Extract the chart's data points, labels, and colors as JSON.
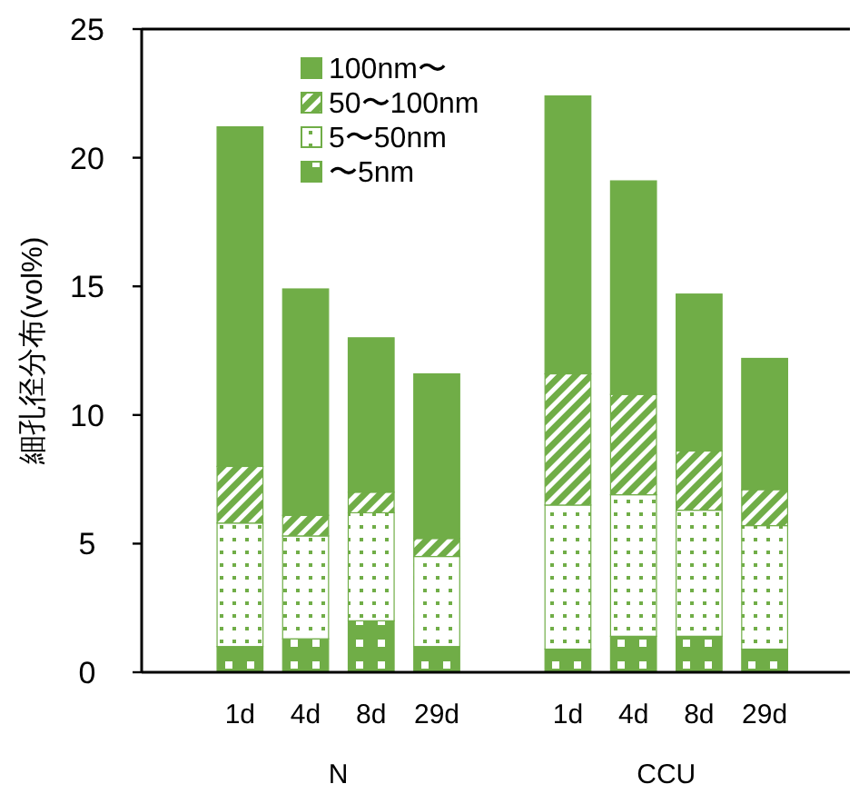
{
  "chart_data": {
    "type": "bar",
    "stacked": true,
    "ylabel": "細孔径分布(vol%)",
    "categories": [
      "1d",
      "4d",
      "8d",
      "29d",
      null,
      "1d",
      "4d",
      "8d",
      "29d"
    ],
    "annotations": [
      "N",
      "CCU"
    ],
    "series": [
      {
        "name": "〜5nm",
        "color": "#70ad47",
        "values": [
          1.0,
          1.3,
          2.0,
          1.0,
          null,
          0.9,
          1.4,
          1.4,
          0.9
        ]
      },
      {
        "name": "5〜50nm",
        "color": "#70ad47",
        "values": [
          4.8,
          4.0,
          4.2,
          3.5,
          null,
          5.6,
          5.5,
          4.9,
          4.8
        ]
      },
      {
        "name": "50〜100nm",
        "color": "#70ad47",
        "values": [
          2.2,
          0.8,
          0.8,
          0.7,
          null,
          5.1,
          3.9,
          2.3,
          1.4
        ]
      },
      {
        "name": "100nm〜",
        "color": "#70ad47",
        "values": [
          13.2,
          8.8,
          6.0,
          6.4,
          null,
          10.8,
          8.3,
          6.1,
          5.1
        ]
      }
    ],
    "ylim": [
      0,
      25
    ],
    "yticks": [
      0,
      5,
      10,
      15,
      20,
      25
    ],
    "legend": "top left"
  }
}
